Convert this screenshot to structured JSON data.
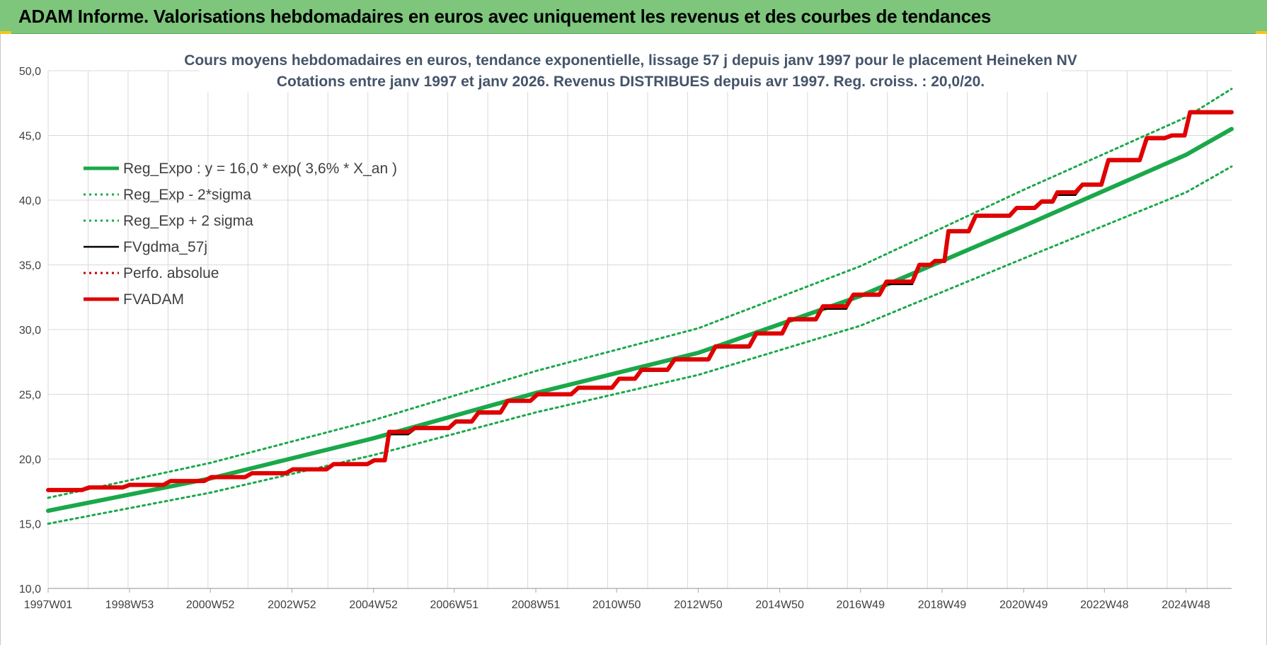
{
  "header": {
    "title": "ADAM Informe. Valorisations hebdomadaires en euros avec uniquement les revenus et des courbes de tendances"
  },
  "colors": {
    "banner": "#7dc67c",
    "reg_expo": "#1aa84a",
    "fvgdma": "#000000",
    "perfo": "#c00000",
    "fvadam": "#e00000",
    "grid": "#d9d9d9"
  },
  "chart_data": {
    "type": "line",
    "title": "Cours moyens hebdomadaires en euros, tendance exponentielle, lissage 57 j depuis janv 1997 pour le placement Heineken NV",
    "subtitle": "Cotations entre janv 1997 et janv 2026. Revenus DISTRIBUES depuis avr 1997.  Reg. croiss. : 20,0/20.",
    "xlabel": "",
    "ylabel": "",
    "ylim": [
      10,
      50
    ],
    "y_ticks": [
      "10,0",
      "15,0",
      "20,0",
      "25,0",
      "30,0",
      "35,0",
      "40,0",
      "45,0",
      "50,0"
    ],
    "x_range": [
      "1997W01",
      "2026W02"
    ],
    "x_ticks": [
      "1997W01",
      "1998W53",
      "2000W52",
      "2002W52",
      "2004W52",
      "2006W51",
      "2008W51",
      "2010W50",
      "2012W50",
      "2014W50",
      "2016W49",
      "2018W49",
      "2020W49",
      "2022W48",
      "2024W48"
    ],
    "grid": true,
    "legend_position": "top-left",
    "series": [
      {
        "name": "Reg_Expo : y = 16,0 * exp( 3,6% *  X_an )",
        "style": "solid-thick",
        "color": "#1aa84a",
        "points": [
          [
            "1997W01",
            16.0
          ],
          [
            "2000W52",
            18.5
          ],
          [
            "2004W52",
            21.6
          ],
          [
            "2008W51",
            25.1
          ],
          [
            "2012W50",
            28.2
          ],
          [
            "2016W49",
            32.6
          ],
          [
            "2020W49",
            38.0
          ],
          [
            "2024W48",
            43.5
          ],
          [
            "2026W02",
            45.5
          ]
        ]
      },
      {
        "name": "Reg_Exp - 2*sigma",
        "style": "dotted",
        "color": "#1aa84a",
        "points": [
          [
            "1997W01",
            15.0
          ],
          [
            "2000W52",
            17.4
          ],
          [
            "2004W52",
            20.3
          ],
          [
            "2008W51",
            23.6
          ],
          [
            "2012W50",
            26.5
          ],
          [
            "2016W49",
            30.3
          ],
          [
            "2020W49",
            35.5
          ],
          [
            "2024W48",
            40.6
          ],
          [
            "2026W02",
            42.6
          ]
        ]
      },
      {
        "name": "Reg_Exp + 2 sigma",
        "style": "dotted",
        "color": "#1aa84a",
        "points": [
          [
            "1997W01",
            17.0
          ],
          [
            "2000W52",
            19.7
          ],
          [
            "2004W52",
            23.0
          ],
          [
            "2008W51",
            26.8
          ],
          [
            "2012W50",
            30.1
          ],
          [
            "2016W49",
            34.9
          ],
          [
            "2020W49",
            40.8
          ],
          [
            "2024W48",
            46.4
          ],
          [
            "2026W02",
            48.6
          ]
        ]
      },
      {
        "name": "FVgdma_57j",
        "style": "solid",
        "color": "#000000",
        "points": [
          [
            "1997W01",
            17.6
          ],
          [
            "1998W01",
            17.8
          ],
          [
            "1999W01",
            18.0
          ],
          [
            "2000W01",
            18.3
          ],
          [
            "2001W01",
            18.6
          ],
          [
            "2002W01",
            18.9
          ],
          [
            "2003W01",
            19.2
          ],
          [
            "2004W01",
            19.6
          ],
          [
            "2005W01",
            19.9
          ],
          [
            "2005W20",
            21.9
          ],
          [
            "2006W01",
            22.3
          ],
          [
            "2007W01",
            22.8
          ],
          [
            "2007W30",
            23.5
          ],
          [
            "2008W15",
            24.5
          ],
          [
            "2009W01",
            24.9
          ],
          [
            "2010W01",
            25.5
          ],
          [
            "2011W01",
            26.2
          ],
          [
            "2011W30",
            26.8
          ],
          [
            "2012W20",
            27.6
          ],
          [
            "2013W20",
            28.6
          ],
          [
            "2014W20",
            29.6
          ],
          [
            "2015W10",
            30.7
          ],
          [
            "2016W01",
            31.6
          ],
          [
            "2016W40",
            32.6
          ],
          [
            "2017W30",
            33.5
          ],
          [
            "2018W20",
            34.9
          ],
          [
            "2018W40",
            35.3
          ],
          [
            "2019W05",
            37.5
          ],
          [
            "2019W40",
            38.7
          ],
          [
            "2020W40",
            39.3
          ],
          [
            "2021W20",
            39.8
          ],
          [
            "2021W40",
            40.4
          ],
          [
            "2022W20",
            41.1
          ],
          [
            "2023W01",
            43.0
          ],
          [
            "2023W50",
            44.7
          ],
          [
            "2024W30",
            45.0
          ],
          [
            "2025W01",
            46.7
          ],
          [
            "2026W02",
            46.7
          ]
        ]
      },
      {
        "name": "Perfo. absolue",
        "style": "dotted",
        "color": "#c00000",
        "points": []
      },
      {
        "name": "FVADAM",
        "style": "solid-thick",
        "color": "#e00000",
        "points": [
          [
            "1997W01",
            17.6
          ],
          [
            "1998W01",
            17.8
          ],
          [
            "1999W01",
            18.0
          ],
          [
            "2000W01",
            18.3
          ],
          [
            "2001W01",
            18.6
          ],
          [
            "2002W01",
            18.9
          ],
          [
            "2003W01",
            19.2
          ],
          [
            "2004W01",
            19.6
          ],
          [
            "2005W01",
            19.9
          ],
          [
            "2005W20",
            22.1
          ],
          [
            "2006W01",
            22.4
          ],
          [
            "2007W01",
            22.9
          ],
          [
            "2007W30",
            23.6
          ],
          [
            "2008W15",
            24.5
          ],
          [
            "2009W01",
            25.0
          ],
          [
            "2010W01",
            25.5
          ],
          [
            "2011W01",
            26.2
          ],
          [
            "2011W30",
            26.9
          ],
          [
            "2012W20",
            27.7
          ],
          [
            "2013W20",
            28.7
          ],
          [
            "2014W20",
            29.7
          ],
          [
            "2015W10",
            30.8
          ],
          [
            "2016W01",
            31.8
          ],
          [
            "2016W40",
            32.7
          ],
          [
            "2017W30",
            33.7
          ],
          [
            "2018W20",
            35.0
          ],
          [
            "2018W40",
            35.3
          ],
          [
            "2019W05",
            37.6
          ],
          [
            "2019W40",
            38.8
          ],
          [
            "2020W40",
            39.4
          ],
          [
            "2021W20",
            39.9
          ],
          [
            "2021W40",
            40.6
          ],
          [
            "2022W20",
            41.2
          ],
          [
            "2023W01",
            43.1
          ],
          [
            "2023W50",
            44.8
          ],
          [
            "2024W30",
            45.0
          ],
          [
            "2025W01",
            46.8
          ],
          [
            "2026W02",
            46.8
          ]
        ]
      }
    ]
  }
}
